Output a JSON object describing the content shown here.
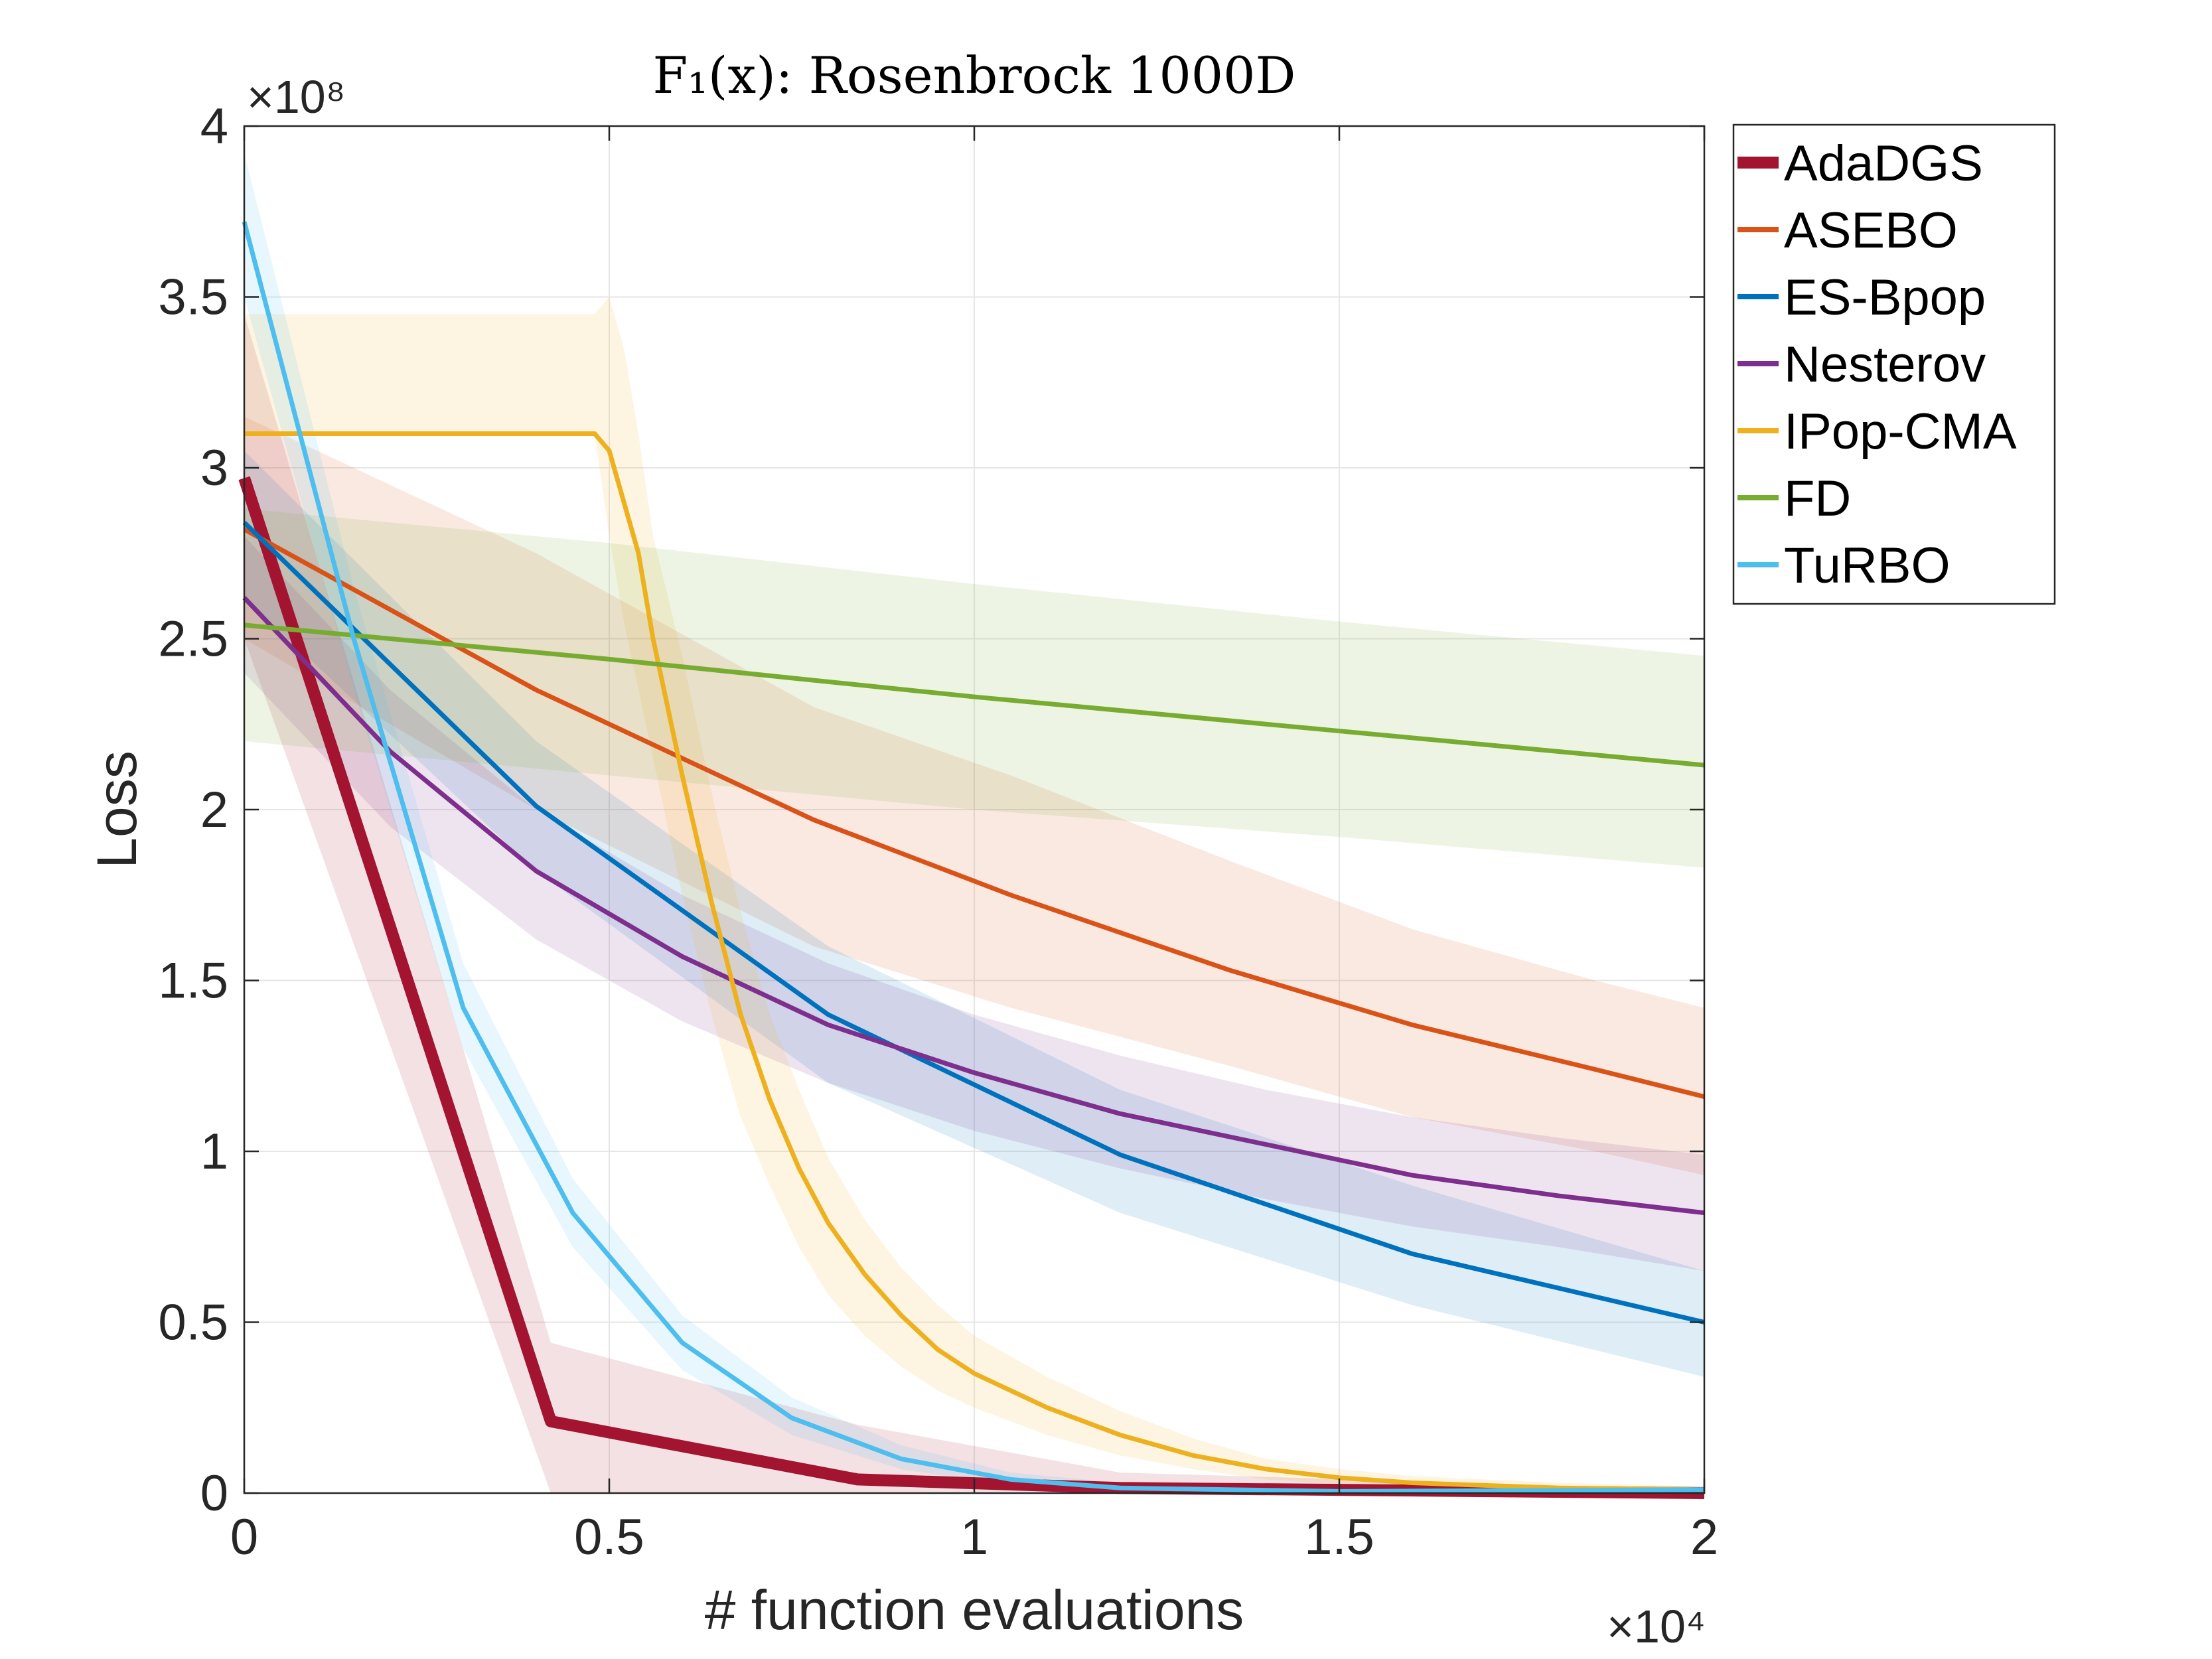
{
  "chart_data": {
    "type": "line",
    "title": "F₁(x): Rosenbrock 1000D",
    "xlabel": "# function evaluations",
    "ylabel": "Loss",
    "x_exponent_label": "×10⁴",
    "y_exponent_label": "×10⁸",
    "xlim": [
      0,
      2
    ],
    "ylim": [
      0,
      4
    ],
    "xticks": [
      0,
      0.5,
      1,
      1.5,
      2
    ],
    "xtick_labels": [
      "0",
      "0.5",
      "1",
      "1.5",
      "2"
    ],
    "yticks": [
      0,
      0.5,
      1,
      1.5,
      2,
      2.5,
      3,
      3.5,
      4
    ],
    "ytick_labels": [
      "0",
      "0.5",
      "1",
      "1.5",
      "2",
      "2.5",
      "3",
      "3.5",
      "4"
    ],
    "grid": true,
    "legend_position": "outside-top-right",
    "series": [
      {
        "name": "AdaDGS",
        "color": "#A2142F",
        "thick": true,
        "x": [
          0,
          0.42,
          0.84,
          1.2,
          2.0
        ],
        "y": [
          2.97,
          0.21,
          0.04,
          0.015,
          0.0
        ],
        "band_upper": [
          3.45,
          0.44,
          0.2,
          0.06,
          0.01
        ],
        "band_lower": [
          2.5,
          0.0,
          0.0,
          0.0,
          0.0
        ]
      },
      {
        "name": "ASEBO",
        "color": "#D95319",
        "x": [
          0,
          0.4,
          0.78,
          1.05,
          1.35,
          1.6,
          1.85,
          2.0
        ],
        "y": [
          2.82,
          2.35,
          1.97,
          1.75,
          1.53,
          1.37,
          1.24,
          1.16
        ],
        "band_upper": [
          3.15,
          2.75,
          2.3,
          2.1,
          1.85,
          1.65,
          1.5,
          1.42
        ],
        "band_lower": [
          2.5,
          2.0,
          1.6,
          1.42,
          1.25,
          1.1,
          1.0,
          0.93
        ]
      },
      {
        "name": "ES-Bpop",
        "color": "#0072BD",
        "x": [
          0,
          0.4,
          0.8,
          1.2,
          1.6,
          2.0
        ],
        "y": [
          2.84,
          2.01,
          1.4,
          0.99,
          0.7,
          0.5
        ],
        "band_upper": [
          3.05,
          2.2,
          1.6,
          1.18,
          0.9,
          0.65
        ],
        "band_lower": [
          2.62,
          1.82,
          1.2,
          0.82,
          0.55,
          0.34
        ]
      },
      {
        "name": "Nesterov",
        "color": "#7E2F8E",
        "x": [
          0,
          0.2,
          0.4,
          0.6,
          0.8,
          1.0,
          1.2,
          1.4,
          1.6,
          1.8,
          2.0
        ],
        "y": [
          2.62,
          2.17,
          1.82,
          1.57,
          1.37,
          1.23,
          1.11,
          1.02,
          0.93,
          0.87,
          0.82
        ],
        "band_upper": [
          2.8,
          2.35,
          2.0,
          1.75,
          1.55,
          1.4,
          1.28,
          1.18,
          1.1,
          1.04,
          0.99
        ],
        "band_lower": [
          2.4,
          1.95,
          1.62,
          1.38,
          1.2,
          1.06,
          0.95,
          0.86,
          0.78,
          0.72,
          0.65
        ]
      },
      {
        "name": "IPop-CMA",
        "color": "#EDB120",
        "x": [
          0,
          0.48,
          0.5,
          0.52,
          0.54,
          0.56,
          0.6,
          0.64,
          0.68,
          0.72,
          0.76,
          0.8,
          0.85,
          0.9,
          0.95,
          1.0,
          1.1,
          1.2,
          1.3,
          1.4,
          1.5,
          1.6,
          1.8,
          2.0
        ],
        "y": [
          3.1,
          3.1,
          3.05,
          2.9,
          2.75,
          2.5,
          2.1,
          1.73,
          1.4,
          1.15,
          0.95,
          0.79,
          0.64,
          0.52,
          0.42,
          0.35,
          0.25,
          0.17,
          0.11,
          0.07,
          0.045,
          0.03,
          0.015,
          0.01
        ],
        "band_upper": [
          3.45,
          3.45,
          3.5,
          3.35,
          3.1,
          2.8,
          2.45,
          2.05,
          1.7,
          1.4,
          1.18,
          0.98,
          0.8,
          0.66,
          0.55,
          0.46,
          0.34,
          0.24,
          0.16,
          0.1,
          0.07,
          0.05,
          0.03,
          0.02
        ],
        "band_lower": [
          3.1,
          3.1,
          2.8,
          2.55,
          2.35,
          2.15,
          1.75,
          1.4,
          1.1,
          0.9,
          0.72,
          0.58,
          0.46,
          0.37,
          0.3,
          0.25,
          0.17,
          0.11,
          0.07,
          0.04,
          0.025,
          0.015,
          0.005,
          0.0
        ]
      },
      {
        "name": "FD",
        "color": "#77AC30",
        "x": [
          0,
          0.5,
          1.0,
          1.5,
          2.0
        ],
        "y": [
          2.54,
          2.44,
          2.33,
          2.23,
          2.13
        ],
        "band_upper": [
          2.88,
          2.78,
          2.66,
          2.55,
          2.45
        ],
        "band_lower": [
          2.2,
          2.1,
          2.0,
          1.92,
          1.83
        ]
      },
      {
        "name": "TuRBO",
        "color": "#4DBEEE",
        "x": [
          0,
          0.15,
          0.3,
          0.45,
          0.6,
          0.75,
          0.9,
          1.05,
          1.2,
          1.5,
          2.0
        ],
        "y": [
          3.72,
          2.5,
          1.42,
          0.82,
          0.44,
          0.22,
          0.1,
          0.04,
          0.015,
          0.005,
          0.01
        ],
        "band_upper": [
          3.92,
          2.65,
          1.55,
          0.92,
          0.52,
          0.28,
          0.14,
          0.06,
          0.03,
          0.015,
          0.02
        ],
        "band_lower": [
          3.5,
          2.35,
          1.3,
          0.72,
          0.36,
          0.17,
          0.07,
          0.02,
          0.0,
          0.0,
          0.0
        ]
      }
    ]
  }
}
